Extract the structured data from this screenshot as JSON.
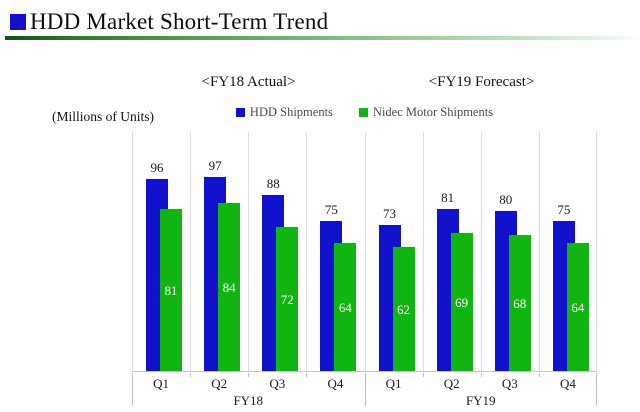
{
  "title": {
    "text": "HDD Market Short-Term Trend",
    "bullet_color": "#1111cc"
  },
  "sections": [
    {
      "header": "<FY18 Actual>"
    },
    {
      "header": "<FY19 Forecast>"
    }
  ],
  "chart_data": {
    "type": "bar",
    "title": "HDD Market Short-Term Trend",
    "unit_label": "(Millions of Units)",
    "ylim": [
      0,
      120
    ],
    "grid": "vertical category separators only",
    "legend_position": "top-center",
    "bar_style": "overlapping pairs, second series drawn in front",
    "groups": [
      {
        "label": "FY18",
        "span": 4
      },
      {
        "label": "FY19",
        "span": 4
      }
    ],
    "categories": [
      "Q1",
      "Q2",
      "Q3",
      "Q4",
      "Q1",
      "Q2",
      "Q3",
      "Q4"
    ],
    "series": [
      {
        "name": "HDD Shipments",
        "color": "#1212cc",
        "values": [
          96,
          97,
          88,
          75,
          73,
          81,
          80,
          75
        ],
        "label_style": "above-bar-dark"
      },
      {
        "name": "Nidec Motor Shipments",
        "color": "#11b511",
        "values": [
          81,
          84,
          72,
          64,
          62,
          69,
          68,
          64
        ],
        "label_style": "inside-bar-white"
      }
    ]
  }
}
